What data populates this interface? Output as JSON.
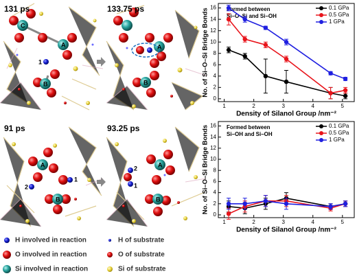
{
  "panels": [
    {
      "time": "131 ps",
      "atom_labels": [
        "C",
        "A",
        "1",
        "B"
      ]
    },
    {
      "time": "133.75 ps",
      "atom_labels": [
        "A",
        "B"
      ]
    },
    {
      "time": "91 ps",
      "atom_labels": [
        "A",
        "2",
        "1",
        "B"
      ]
    },
    {
      "time": "93.25 ps",
      "atom_labels": [
        "2",
        "1",
        "A",
        "B"
      ]
    }
  ],
  "atom_legend": [
    "H involved in reaction",
    "H of substrate",
    "O involved in reaction",
    "O of substrate",
    "Si involved in reaction",
    "Si of substrate"
  ],
  "chart_data": [
    {
      "type": "line",
      "annotation": [
        "Formed between",
        "Si–O–Si and Si–OH"
      ],
      "x_label": "Density of Silanol Group /nm⁻²",
      "y_label": "No. of Si–O–Si Bridge Bonds",
      "x": [
        1.15,
        1.7,
        2.4,
        3.1,
        4.6,
        5.1
      ],
      "xlim": [
        0.8,
        5.4
      ],
      "xticks": [
        1,
        2,
        3,
        4,
        5
      ],
      "ylim": [
        -0.5,
        16.8
      ],
      "yticks": [
        0,
        2,
        4,
        6,
        8,
        10,
        12,
        14,
        16
      ],
      "legend": "upper right",
      "series": [
        {
          "name": "0.1 GPa",
          "color": "#000000",
          "values": [
            8.6,
            7.5,
            4.0,
            3.0,
            1.0,
            0.5
          ],
          "errors": [
            0.5,
            0.5,
            3,
            2,
            1,
            0.5
          ]
        },
        {
          "name": "0.5 GPa",
          "color": "#e8141b",
          "values": [
            14,
            10.5,
            9.5,
            7,
            1,
            1.5
          ],
          "errors": [
            1,
            0.5,
            0.5,
            0.5,
            1,
            0.5
          ]
        },
        {
          "name": "1 GPa",
          "color": "#1f1fe0",
          "values": [
            16,
            14,
            12.5,
            10,
            4.5,
            3.5
          ],
          "errors": [
            0.5,
            0.5,
            0.3,
            0.5,
            0.3,
            0.3
          ]
        }
      ]
    },
    {
      "type": "line",
      "annotation": [
        "Formed between",
        "Si–OH and Si–OH"
      ],
      "x_label": "Density of Silanol Group /nm⁻²",
      "y_label": "No. of Si–O–Si Bridge Bonds",
      "x": [
        1.15,
        1.7,
        2.4,
        3.1,
        4.6,
        5.1
      ],
      "xlim": [
        0.8,
        5.4
      ],
      "xticks": [
        1,
        2,
        3,
        4,
        5
      ],
      "ylim": [
        -0.5,
        16.8
      ],
      "yticks": [
        0,
        2,
        4,
        6,
        8,
        10,
        12,
        14,
        16
      ],
      "legend": "upper right",
      "series": [
        {
          "name": "0.1 GPa",
          "color": "#000000",
          "values": [
            1.5,
            1.2,
            2,
            3,
            1.5,
            2
          ],
          "errors": [
            1,
            1,
            1,
            1,
            0.5,
            0.5
          ]
        },
        {
          "name": "0.5 GPa",
          "color": "#e8141b",
          "values": [
            0.2,
            1.5,
            2.5,
            2.5,
            1.2,
            2
          ],
          "errors": [
            1,
            1,
            1,
            1,
            0.5,
            0.5
          ]
        },
        {
          "name": "1 GPa",
          "color": "#1f1fe0",
          "values": [
            2,
            2,
            2.5,
            2,
            1.5,
            2
          ],
          "errors": [
            1,
            1,
            1,
            1,
            0.5,
            0.5
          ]
        }
      ]
    }
  ]
}
